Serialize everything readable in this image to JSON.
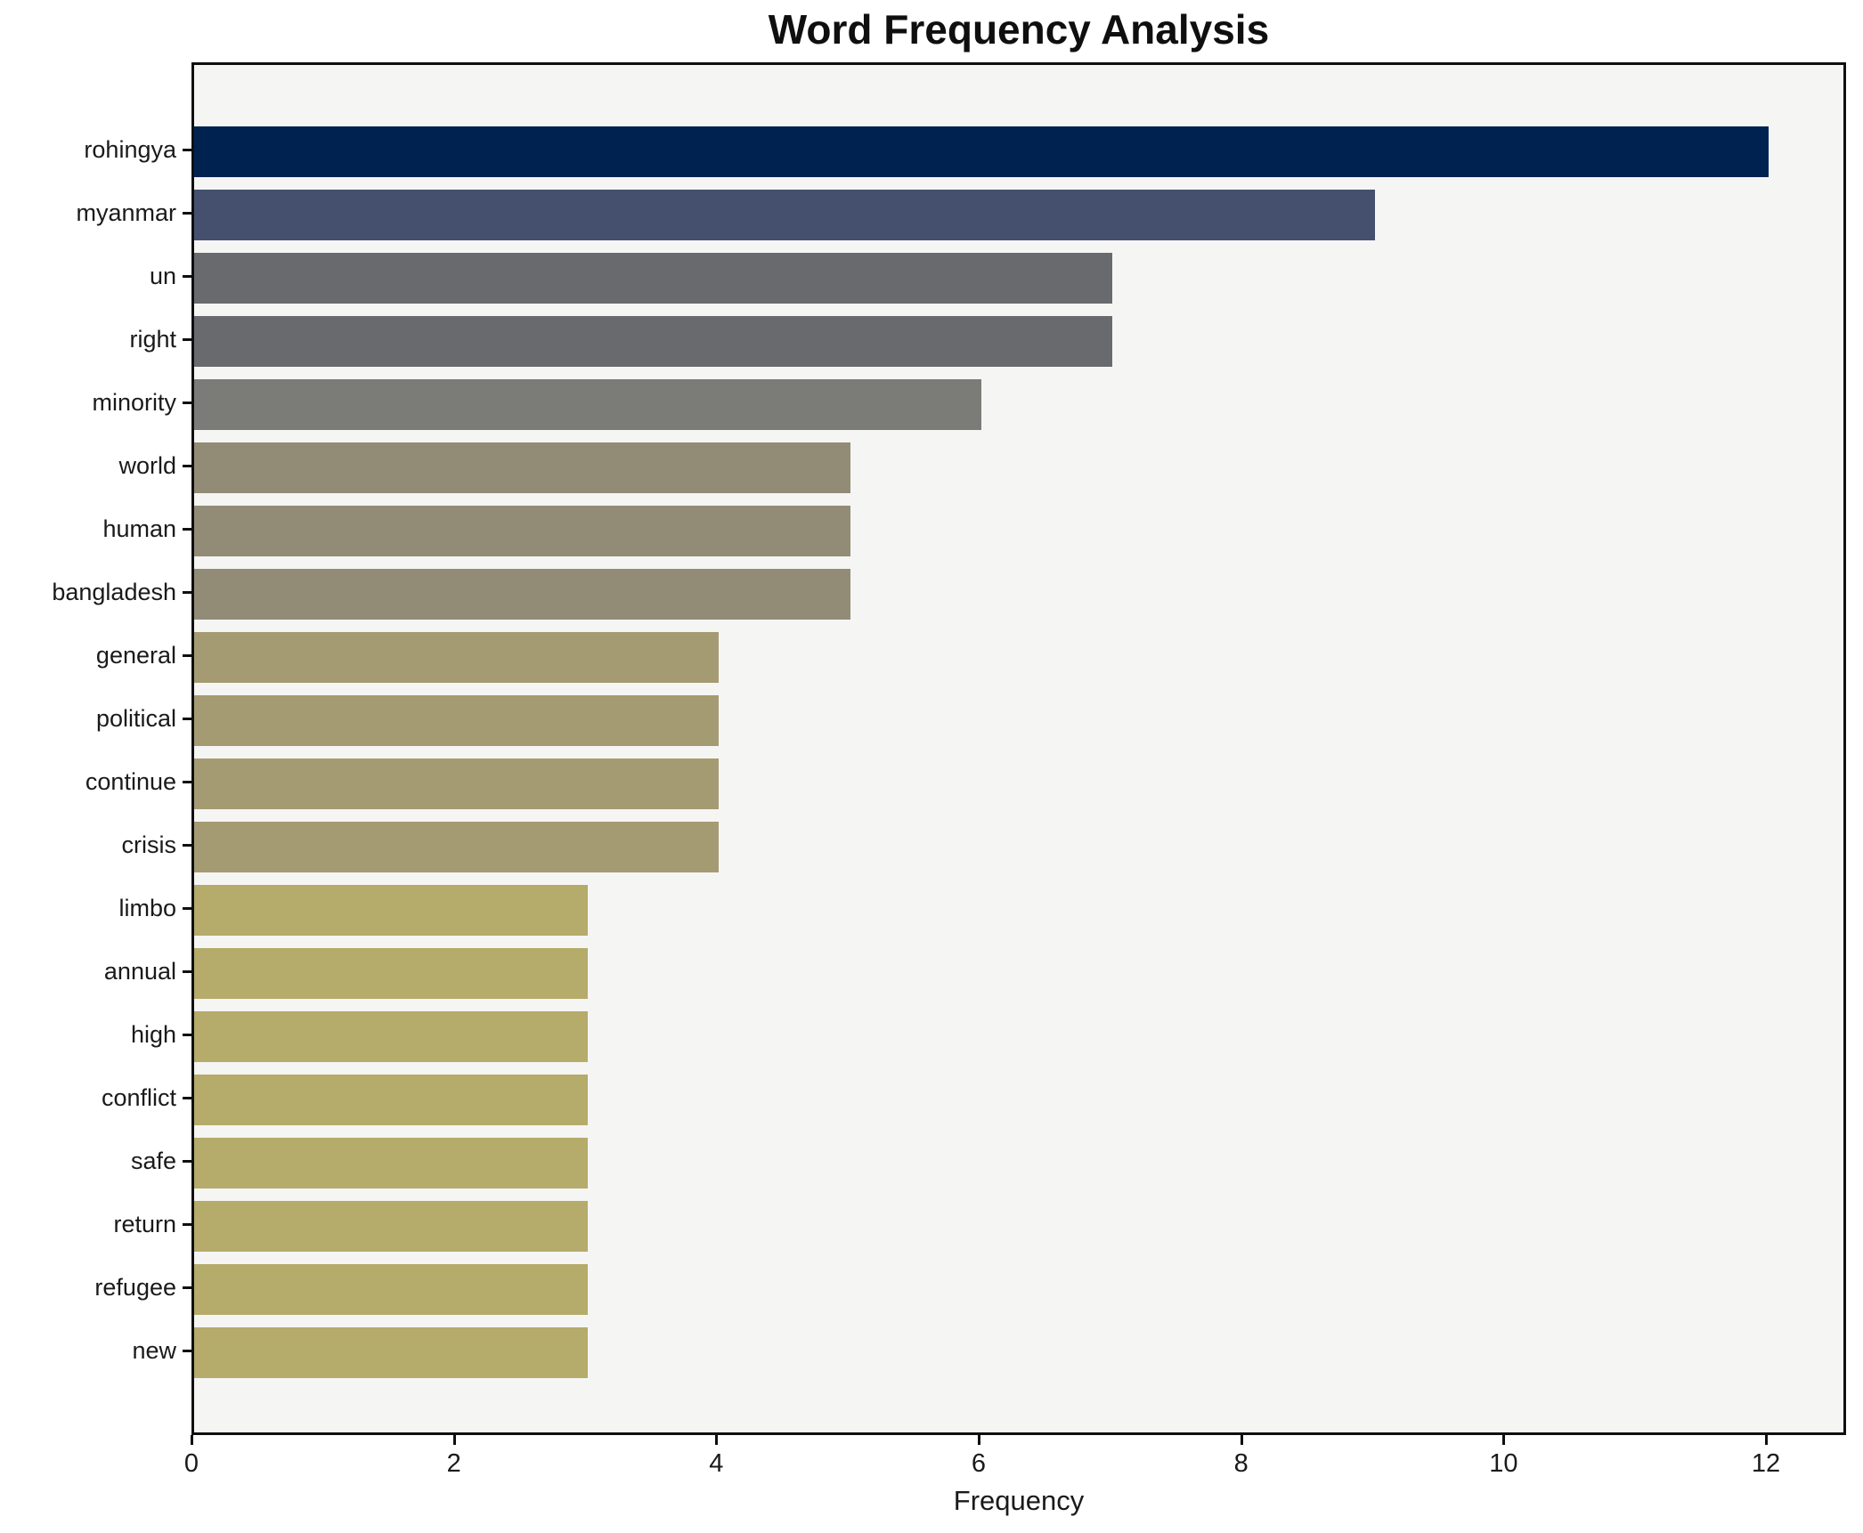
{
  "title": "Word Frequency Analysis",
  "chart_data": {
    "type": "bar",
    "orientation": "horizontal",
    "title": "Word Frequency Analysis",
    "xlabel": "Frequency",
    "ylabel": "",
    "categories": [
      "rohingya",
      "myanmar",
      "un",
      "right",
      "minority",
      "world",
      "human",
      "bangladesh",
      "general",
      "political",
      "continue",
      "crisis",
      "limbo",
      "annual",
      "high",
      "conflict",
      "safe",
      "return",
      "refugee",
      "new"
    ],
    "values": [
      12,
      9,
      7,
      7,
      6,
      5,
      5,
      5,
      4,
      4,
      4,
      4,
      3,
      3,
      3,
      3,
      3,
      3,
      3,
      3
    ],
    "bar_colors": [
      "#002250",
      "#45506e",
      "#696a6e",
      "#696a6e",
      "#7b7b78",
      "#928c77",
      "#928c77",
      "#928c77",
      "#a59b72",
      "#a59b72",
      "#a59b72",
      "#a59b72",
      "#b5ab6a",
      "#b5ab6a",
      "#b5ab6a",
      "#b5ab6a",
      "#b5ab6a",
      "#b5ab6a",
      "#b5ab6a",
      "#b5ab6a"
    ],
    "x_ticks": [
      0,
      2,
      4,
      6,
      8,
      10,
      12
    ],
    "xlim": [
      0,
      12.6
    ],
    "grid": false,
    "legend": "none",
    "plot_background": "#f5f5f4",
    "spine_color": "#0f0f0f"
  }
}
